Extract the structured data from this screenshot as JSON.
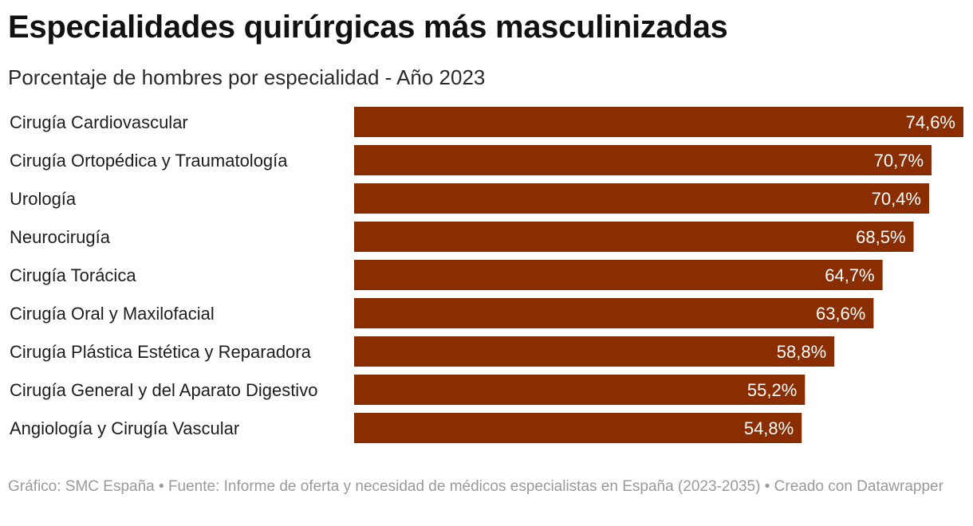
{
  "header": {
    "title": "Especialidades quirúrgicas más masculinizadas",
    "subtitle": "Porcentaje de hombres por especialidad - Año 2023"
  },
  "colors": {
    "bar": "#8a2d00",
    "value_text": "#ffffff"
  },
  "chart_data": {
    "type": "bar",
    "orientation": "horizontal",
    "title": "Especialidades quirúrgicas más masculinizadas",
    "subtitle": "Porcentaje de hombres por especialidad - Año 2023",
    "categories": [
      "Cirugía Cardiovascular",
      "Cirugía Ortopédica y Traumatología",
      "Urología",
      "Neurocirugía",
      "Cirugía Torácica",
      "Cirugía Oral y Maxilofacial",
      "Cirugía Plástica Estética y Reparadora",
      "Cirugía General y del Aparato Digestivo",
      "Angiología y Cirugía Vascular"
    ],
    "values": [
      74.6,
      70.7,
      70.4,
      68.5,
      64.7,
      63.6,
      58.8,
      55.2,
      54.8
    ],
    "value_labels": [
      "74,6%",
      "70,7%",
      "70,4%",
      "68,5%",
      "64,7%",
      "63,6%",
      "58,8%",
      "55,2%",
      "54,8%"
    ],
    "unit": "%",
    "xlim": [
      0,
      74.6
    ],
    "xlabel": "",
    "ylabel": "",
    "grid": false
  },
  "footer": {
    "text": "Gráfico: SMC España • Fuente: Informe de oferta y necesidad de médicos especialistas en España (2023-2035) • Creado con Datawrapper"
  }
}
